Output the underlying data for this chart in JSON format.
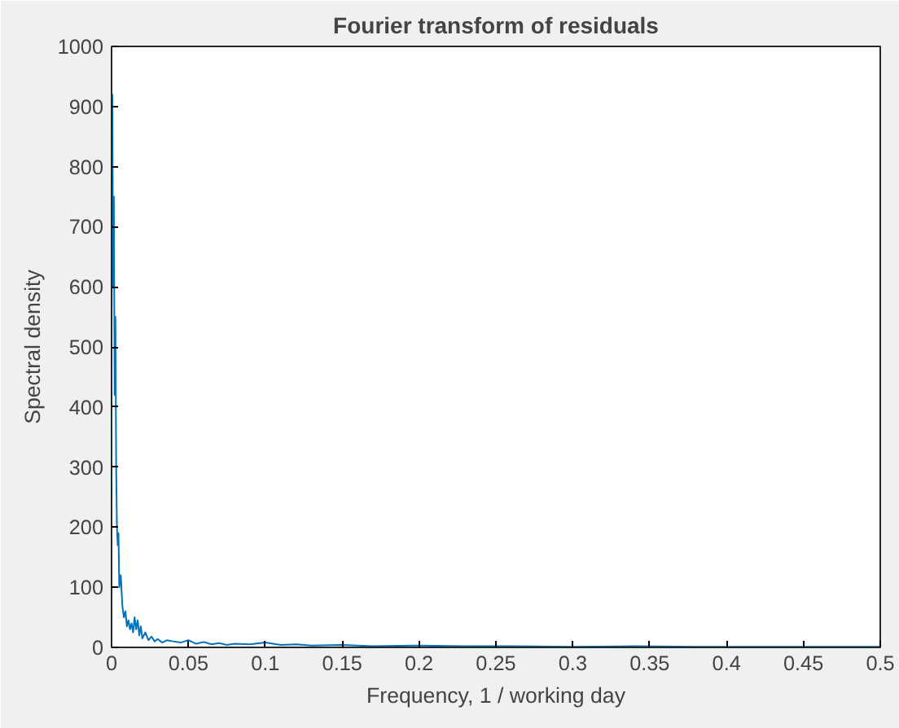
{
  "chart_data": {
    "type": "line",
    "title": "Fourier transform of residuals",
    "xlabel": "Frequency, 1 / working day",
    "ylabel": "Spectral density",
    "xlim": [
      0,
      0.5
    ],
    "ylim": [
      0,
      1000
    ],
    "xticks": [
      0,
      0.05,
      0.1,
      0.15,
      0.2,
      0.25,
      0.3,
      0.35,
      0.4,
      0.45,
      0.5
    ],
    "yticks": [
      0,
      100,
      200,
      300,
      400,
      500,
      600,
      700,
      800,
      900,
      1000
    ],
    "grid": false,
    "marker": "none",
    "line_style": "solid",
    "series": [
      {
        "color": "#0072bd",
        "x": [
          0,
          0.0005,
          0.001,
          0.0015,
          0.002,
          0.0025,
          0.003,
          0.0035,
          0.004,
          0.0045,
          0.005,
          0.006,
          0.007,
          0.008,
          0.009,
          0.01,
          0.011,
          0.012,
          0.013,
          0.014,
          0.015,
          0.016,
          0.017,
          0.018,
          0.019,
          0.02,
          0.022,
          0.024,
          0.026,
          0.028,
          0.03,
          0.033,
          0.036,
          0.04,
          0.045,
          0.05,
          0.055,
          0.06,
          0.065,
          0.07,
          0.075,
          0.08,
          0.09,
          0.1,
          0.11,
          0.12,
          0.13,
          0.15,
          0.17,
          0.2,
          0.23,
          0.26,
          0.3,
          0.34,
          0.38,
          0.42,
          0.46,
          0.5
        ],
        "values": [
          500,
          920,
          600,
          750,
          420,
          550,
          300,
          200,
          170,
          190,
          100,
          120,
          70,
          50,
          60,
          35,
          45,
          30,
          40,
          25,
          50,
          30,
          45,
          20,
          35,
          15,
          25,
          12,
          18,
          10,
          14,
          8,
          12,
          10,
          8,
          12,
          6,
          9,
          5,
          7,
          4,
          6,
          5,
          8,
          4,
          5,
          3,
          4,
          2,
          3,
          2,
          2,
          1,
          2,
          1,
          1,
          1,
          1
        ]
      }
    ]
  }
}
